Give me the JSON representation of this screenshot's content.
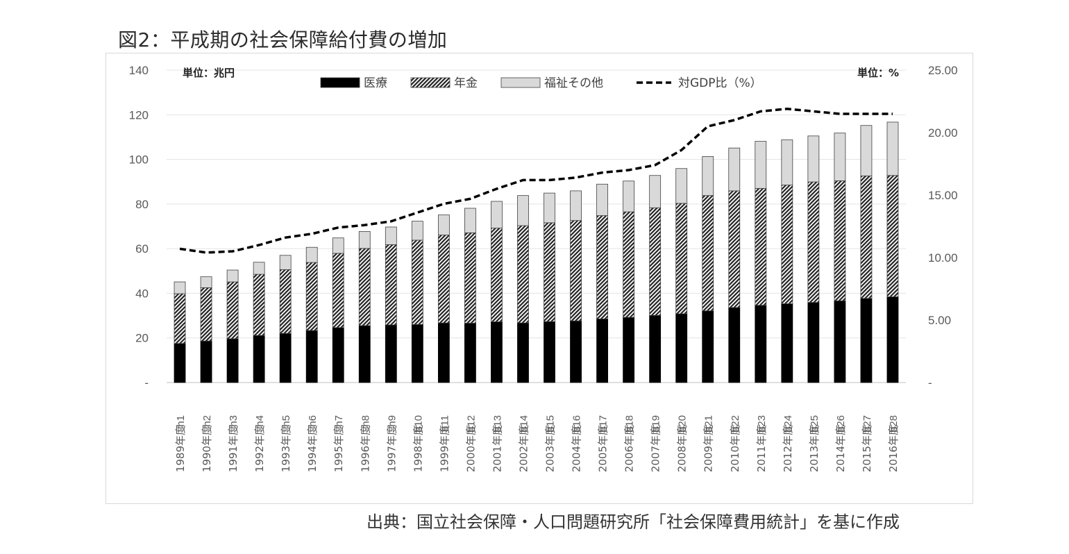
{
  "title": "図2：平成期の社会保障給付費の増加",
  "source": "出典：国立社会保障・人口問題研究所「社会保障費用統計」を基に作成",
  "chart_data": {
    "type": "bar",
    "stacked": true,
    "unit_left": "単位：兆円",
    "unit_right": "単位：%",
    "categories": [
      "h1",
      "h2",
      "h3",
      "h4",
      "h5",
      "h6",
      "h7",
      "h8",
      "h9",
      "h10",
      "h11",
      "h12",
      "h13",
      "h14",
      "h15",
      "h16",
      "h17",
      "h18",
      "h19",
      "h20",
      "h21",
      "h22",
      "h23",
      "h24",
      "h25",
      "h26",
      "h27",
      "h28"
    ],
    "category_years": [
      "1989年度",
      "1990年度",
      "1991年度",
      "1992年度",
      "1993年度",
      "1994年度",
      "1995年度",
      "1996年度",
      "1997年度",
      "1998年度",
      "1999年度",
      "2000年度",
      "2001年度",
      "2002年度",
      "2003年度",
      "2004年度",
      "2005年度",
      "2006年度",
      "2007年度",
      "2008年度",
      "2009年度",
      "2010年度",
      "2011年度",
      "2012年度",
      "2013年度",
      "2014年度",
      "2015年度",
      "2016年度"
    ],
    "series": [
      {
        "name": "医療",
        "axis": "left",
        "style": "solid",
        "color": "#000000",
        "values": [
          17.5,
          18.6,
          19.6,
          21.1,
          22.0,
          23.3,
          24.6,
          25.5,
          25.8,
          26.0,
          26.7,
          26.6,
          27.2,
          26.7,
          27.3,
          27.6,
          28.5,
          29.2,
          30.1,
          30.8,
          32.1,
          33.6,
          34.6,
          35.3,
          35.9,
          36.6,
          37.7,
          38.4
        ]
      },
      {
        "name": "年金",
        "axis": "left",
        "style": "hatched",
        "color": "#555555",
        "values": [
          22.3,
          23.9,
          25.5,
          27.4,
          28.6,
          30.5,
          33.3,
          34.6,
          36.0,
          37.8,
          39.4,
          40.5,
          42.0,
          43.6,
          44.3,
          45.0,
          46.3,
          47.3,
          48.2,
          49.5,
          51.7,
          52.3,
          52.4,
          53.2,
          54.0,
          53.8,
          54.9,
          54.4
        ]
      },
      {
        "name": "福祉その他",
        "axis": "left",
        "style": "light",
        "color": "#d9d9d9",
        "values": [
          5.3,
          4.9,
          5.3,
          5.4,
          6.4,
          6.8,
          6.9,
          7.6,
          7.9,
          8.5,
          9.0,
          11.0,
          12.0,
          13.5,
          13.3,
          13.3,
          14.1,
          13.8,
          14.5,
          15.6,
          17.5,
          19.2,
          21.1,
          20.3,
          20.6,
          21.4,
          22.6,
          23.9
        ]
      },
      {
        "name": "対GDP比（%）",
        "axis": "right",
        "style": "dashed",
        "color": "#000000",
        "values": [
          10.7,
          10.4,
          10.5,
          11.0,
          11.6,
          11.9,
          12.4,
          12.6,
          12.9,
          13.6,
          14.3,
          14.7,
          15.5,
          16.2,
          16.2,
          16.4,
          16.8,
          17.0,
          17.4,
          18.6,
          20.5,
          21.0,
          21.7,
          21.9,
          21.7,
          21.5,
          21.5,
          21.5
        ]
      }
    ],
    "y_left": {
      "min": 0,
      "max": 140,
      "ticks": [
        "-",
        "20",
        "40",
        "60",
        "80",
        "100",
        "120",
        "140"
      ]
    },
    "y_right": {
      "min": 0,
      "max": 25,
      "ticks": [
        "-",
        "5.00",
        "10.00",
        "15.00",
        "20.00",
        "25.00"
      ]
    },
    "grid": true,
    "legend_position": "top"
  }
}
